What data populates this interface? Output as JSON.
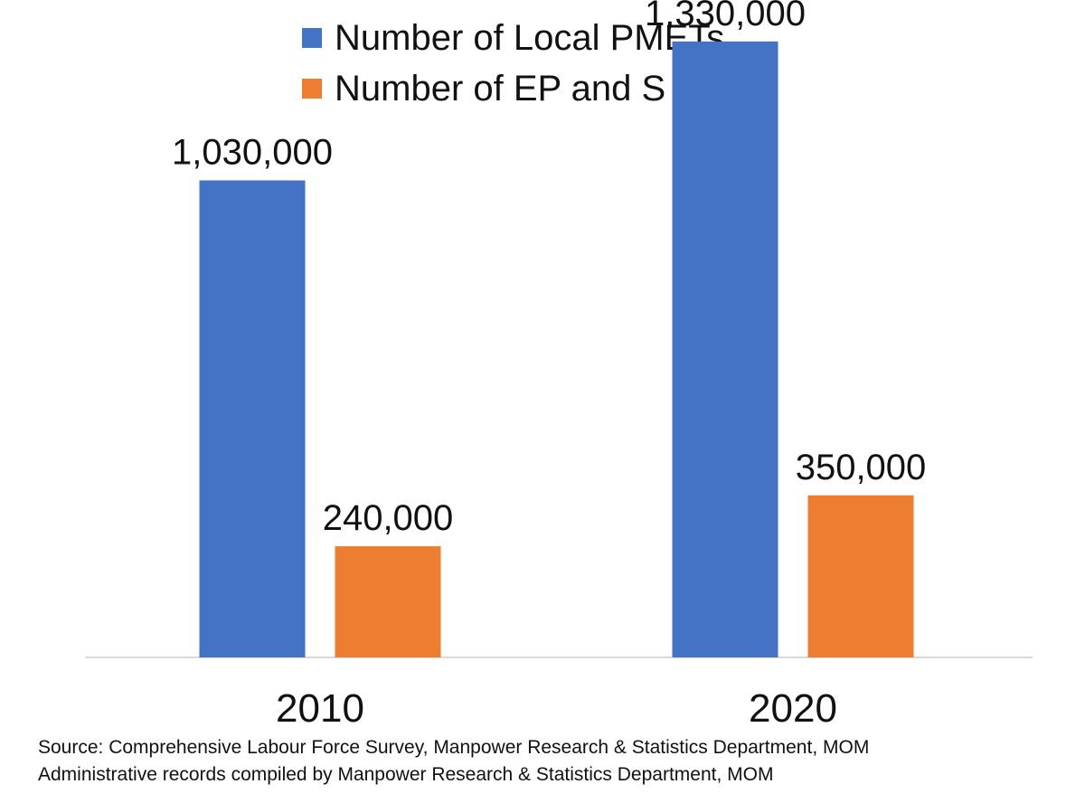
{
  "chart_data": {
    "type": "bar",
    "categories": [
      "2010",
      "2020"
    ],
    "series": [
      {
        "name": "Number of Local PMETs",
        "values": [
          1030000,
          1330000
        ],
        "labels": [
          "1,030,000",
          "1,330,000"
        ],
        "color": "#4472C4"
      },
      {
        "name": "Number of EP and S Pass",
        "values": [
          240000,
          350000
        ],
        "labels": [
          "240,000",
          "350,000"
        ],
        "color": "#ED7D31"
      }
    ],
    "ylim": [
      0,
      1400000
    ],
    "grid": false,
    "legend_position": "top",
    "source_lines": [
      "Source: Comprehensive Labour Force Survey, Manpower Research & Statistics Department, MOM",
      "Administrative records compiled by Manpower Research & Statistics Department, MOM"
    ]
  }
}
